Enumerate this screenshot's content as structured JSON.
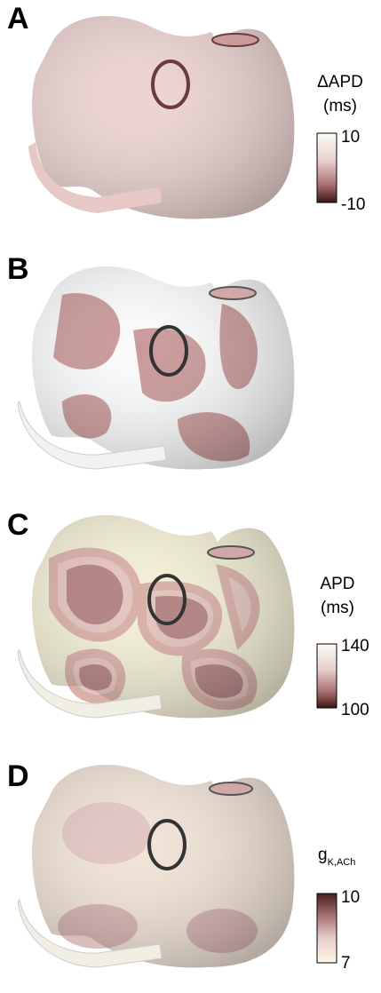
{
  "panels": [
    {
      "label": "A",
      "colorbar": {
        "title": "ΔAPD",
        "unit": "(ms)",
        "max": 10,
        "min": -10
      }
    },
    {
      "label": "B"
    },
    {
      "label": "C",
      "colorbar": {
        "title": "APD",
        "unit": "(ms)",
        "max": 140,
        "min": 100
      }
    },
    {
      "label": "D",
      "colorbar": {
        "title": "g",
        "subscript": "K,ACh",
        "max": 10,
        "min": 7
      }
    }
  ]
}
